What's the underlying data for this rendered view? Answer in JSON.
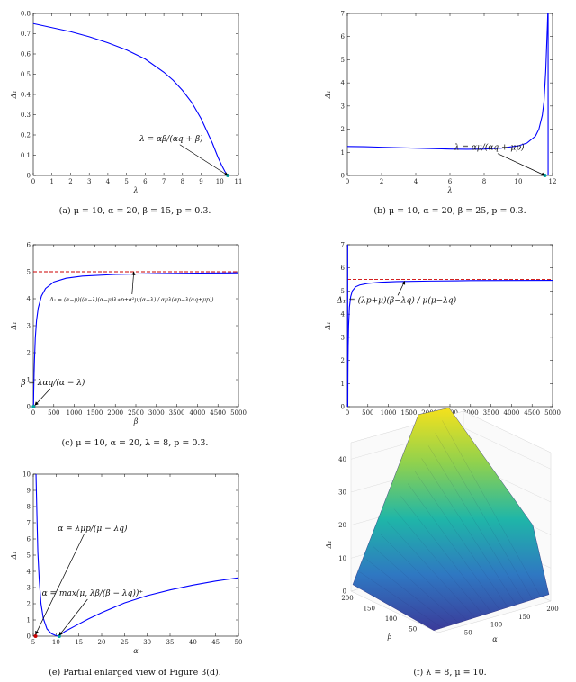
{
  "chart_data": [
    {
      "id": "a",
      "type": "line",
      "caption": "(a) μ = 10, α = 20, β = 15, p = 0.3.",
      "xlabel": "λ",
      "ylabel": "Δ₁",
      "xlim": [
        0,
        11
      ],
      "ylim": [
        0,
        0.8
      ],
      "xticks": [
        0,
        1,
        2,
        3,
        4,
        5,
        6,
        7,
        8,
        9,
        10,
        11
      ],
      "yticks": [
        0,
        0.1,
        0.2,
        0.3,
        0.4,
        0.5,
        0.6,
        0.7,
        0.8
      ],
      "series": [
        {
          "color": "#0000ff",
          "x": [
            0,
            1,
            2,
            3,
            4,
            5,
            6,
            7,
            7.5,
            8,
            8.5,
            9,
            9.3,
            9.6,
            9.9,
            10.1,
            10.3,
            10.43
          ],
          "y": [
            0.75,
            0.73,
            0.71,
            0.685,
            0.655,
            0.62,
            0.575,
            0.51,
            0.47,
            0.42,
            0.36,
            0.28,
            0.22,
            0.16,
            0.09,
            0.05,
            0.015,
            0
          ]
        }
      ],
      "markers": [
        {
          "x": 10.43,
          "y": 0,
          "color": "#00a0a0"
        }
      ],
      "annotations": [
        {
          "text": "λ = αβ/(αq + β)",
          "x": 7.4,
          "y": 0.17,
          "arrow_to": [
            10.43,
            0
          ]
        }
      ]
    },
    {
      "id": "b",
      "type": "line",
      "caption": "(b) μ = 10, α = 20, β = 25, p = 0.3.",
      "xlabel": "λ",
      "ylabel": "Δ₁",
      "xlim": [
        0,
        12
      ],
      "ylim": [
        0,
        7
      ],
      "xticks": [
        0,
        2,
        4,
        6,
        8,
        10,
        12
      ],
      "yticks": [
        0,
        1,
        2,
        3,
        4,
        5,
        6,
        7
      ],
      "series": [
        {
          "color": "#0000ff",
          "x": [
            0,
            1,
            2,
            3,
            4,
            5,
            6,
            7,
            8,
            9,
            10,
            10.5,
            11,
            11.2,
            11.4,
            11.5,
            11.6,
            11.65,
            11.7,
            11.72
          ],
          "y": [
            1.25,
            1.24,
            1.22,
            1.2,
            1.18,
            1.16,
            1.14,
            1.13,
            1.14,
            1.18,
            1.28,
            1.4,
            1.7,
            2.0,
            2.6,
            3.2,
            4.5,
            5.5,
            6.5,
            7
          ]
        }
      ],
      "vlines": [
        {
          "x": 11.74,
          "color": "#0000ff"
        }
      ],
      "markers": [
        {
          "x": 11.55,
          "y": 0,
          "color": "#00a0a0"
        }
      ],
      "annotations": [
        {
          "text": "λ = αμ/(αq + μp)",
          "x": 8.3,
          "y": 1.1,
          "arrow_to": [
            11.55,
            0
          ]
        }
      ]
    },
    {
      "id": "c",
      "type": "line",
      "caption": "(c) μ = 10, α = 20, λ = 8, p = 0.3.",
      "xlabel": "β",
      "ylabel": "Δ₁",
      "xlim": [
        0,
        5000
      ],
      "ylim": [
        0,
        6
      ],
      "xticks": [
        0,
        500,
        1000,
        1500,
        2000,
        2500,
        3000,
        3500,
        4000,
        4500,
        5000
      ],
      "yticks": [
        0,
        1,
        2,
        3,
        4,
        5,
        6
      ],
      "series": [
        {
          "color": "#0000ff",
          "x": [
            6,
            10,
            20,
            30,
            50,
            80,
            120,
            200,
            300,
            500,
            800,
            1200,
            2000,
            3000,
            4000,
            5000
          ],
          "y": [
            0,
            0.5,
            1.2,
            1.75,
            2.55,
            3.2,
            3.65,
            4.1,
            4.38,
            4.62,
            4.76,
            4.84,
            4.9,
            4.93,
            4.95,
            4.96
          ]
        }
      ],
      "hlines": [
        {
          "y": 5.0,
          "color": "#cc0000",
          "dashed": true
        }
      ],
      "markers": [
        {
          "x": 6,
          "y": 0,
          "color": "#00a0a0"
        }
      ],
      "annotations": [
        {
          "text": "Δ₁ = (α−μ)((α−λ)(α−μ)λ∗p+α²μ)(α−λ) / αμλ(αp−λ(αq+μp))",
          "x": 2400,
          "y": 3.9,
          "arrow_to": [
            2450,
            5.0
          ]
        },
        {
          "text": "β = λαq/(α − λ)",
          "x": 480,
          "y": 0.8,
          "arrow_to": [
            40,
            0.05
          ]
        }
      ]
    },
    {
      "id": "d",
      "type": "line",
      "caption": "(d) μ = 10, β = 25, λ = 8, p = 0.3.",
      "xlabel": "α",
      "ylabel": "Δ₁",
      "xlim": [
        0,
        5000
      ],
      "ylim": [
        0,
        7
      ],
      "xticks": [
        0,
        500,
        1000,
        1500,
        2000,
        2500,
        3000,
        3500,
        4000,
        4500,
        5000
      ],
      "yticks": [
        0,
        1,
        2,
        3,
        4,
        5,
        6,
        7
      ],
      "series": [
        {
          "color": "#0000ff",
          "x": [
            10,
            12,
            15,
            20,
            30,
            50,
            80,
            120,
            200,
            300,
            500,
            800,
            1200,
            2000,
            3000,
            5000
          ],
          "y": [
            0,
            1.0,
            1.8,
            2.6,
            3.5,
            4.3,
            4.75,
            5.0,
            5.18,
            5.26,
            5.33,
            5.38,
            5.41,
            5.43,
            5.45,
            5.46
          ]
        }
      ],
      "vlines": [
        {
          "x": 8,
          "color": "#0000ff"
        }
      ],
      "hlines": [
        {
          "y": 5.5,
          "color": "#cc0000",
          "dashed": true
        }
      ],
      "annotations": [
        {
          "text": "Δ₁ = (λp+μ)(β−λq) / μ(μ−λq)",
          "x": 1200,
          "y": 4.5,
          "arrow_to": [
            1400,
            5.43
          ]
        }
      ]
    },
    {
      "id": "e",
      "type": "line",
      "caption": "(e) Partial enlarged view of Figure 3(d).",
      "xlabel": "α",
      "ylabel": "Δ₁",
      "xlim": [
        5,
        50
      ],
      "ylim": [
        0,
        10
      ],
      "xticks": [
        5,
        10,
        15,
        20,
        25,
        30,
        35,
        40,
        45,
        50
      ],
      "yticks": [
        0,
        1,
        2,
        3,
        4,
        5,
        6,
        7,
        8,
        9,
        10
      ],
      "series": [
        {
          "color": "#0000ff",
          "x": [
            5.6,
            5.8,
            6,
            6.3,
            6.7,
            7.2,
            8,
            9,
            10,
            10.5,
            10.7,
            11,
            12,
            14,
            17,
            20,
            25,
            30,
            35,
            40,
            45,
            50
          ],
          "y": [
            10,
            7.5,
            5.2,
            3.5,
            2.0,
            1.1,
            0.45,
            0.15,
            0.03,
            0,
            0.02,
            0.1,
            0.3,
            0.6,
            1.05,
            1.45,
            2.05,
            2.5,
            2.85,
            3.15,
            3.4,
            3.6
          ]
        }
      ],
      "markers": [
        {
          "x": 5.5,
          "y": 0,
          "color": "#cc0000"
        },
        {
          "x": 10.7,
          "y": 0,
          "color": "#00a0a0"
        }
      ],
      "annotations": [
        {
          "text": "α = λμp/(μ − λq)",
          "x": 18,
          "y": 6.5,
          "arrow_to": [
            5.5,
            0.1
          ]
        },
        {
          "text": "α = max(μ, λβ/(β − λq))⁺",
          "x": 18,
          "y": 2.5,
          "arrow_to": [
            10.7,
            0.05
          ]
        }
      ]
    },
    {
      "id": "f",
      "type": "surface",
      "caption": "(f) λ = 8, μ = 10.",
      "xlabel": "α",
      "ylabel": "β",
      "zlabel": "Δ₁",
      "xticks": [
        50,
        100,
        150,
        200
      ],
      "yticks": [
        50,
        100,
        150,
        200
      ],
      "zticks": [
        0,
        10,
        20,
        30,
        40
      ]
    }
  ]
}
